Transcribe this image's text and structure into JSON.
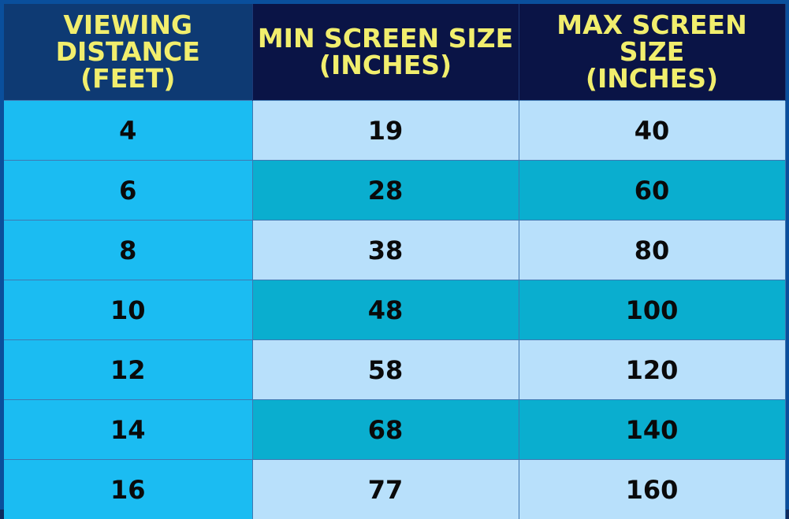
{
  "chart_data": {
    "type": "table",
    "columns": [
      "VIEWING\nDISTANCE (FEET)",
      "MIN SCREEN SIZE\n(INCHES)",
      "MAX SCREEN SIZE\n(INCHES)"
    ],
    "rows": [
      [
        "4",
        "19",
        "40"
      ],
      [
        "6",
        "28",
        "60"
      ],
      [
        "8",
        "38",
        "80"
      ],
      [
        "10",
        "48",
        "100"
      ],
      [
        "12",
        "58",
        "120"
      ],
      [
        "14",
        "68",
        "140"
      ],
      [
        "16",
        "77",
        "160"
      ]
    ]
  },
  "colors": {
    "header_text": "#f1ee6d",
    "header_bg_first": "#0e3a73",
    "header_bg_other": "#0a1446",
    "first_column_bg": "#1bbcf2",
    "row_light_bg": "#b8e0fb",
    "row_dark_bg": "#0aaecf"
  }
}
